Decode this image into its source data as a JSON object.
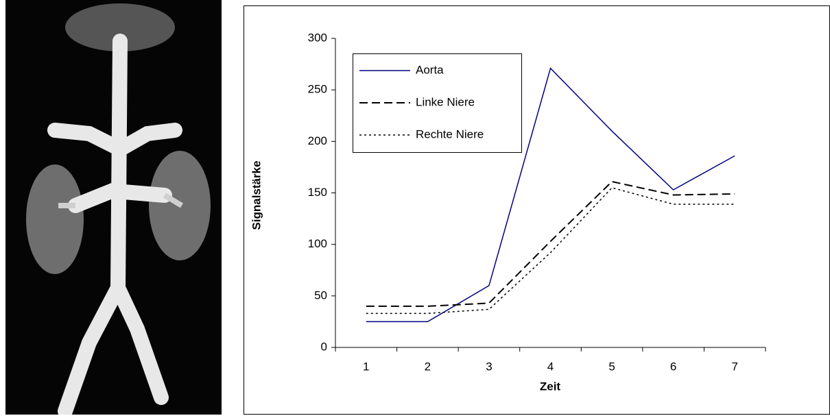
{
  "chart_data": {
    "type": "line",
    "x_label": "Zeit",
    "y_label": "Signalstärke",
    "categories": [
      "1",
      "2",
      "3",
      "4",
      "5",
      "6",
      "7"
    ],
    "series": [
      {
        "name": "Aorta",
        "color": "#000080",
        "style": "solid",
        "values": [
          25,
          25,
          60,
          271,
          210,
          153,
          186
        ]
      },
      {
        "name": "Linke Niere",
        "color": "#000000",
        "style": "dashed",
        "values": [
          40,
          40,
          43,
          103,
          161,
          148,
          149
        ]
      },
      {
        "name": "Rechte Niere",
        "color": "#000000",
        "style": "dotted",
        "values": [
          33,
          33,
          37,
          92,
          155,
          139,
          139
        ]
      }
    ],
    "ylim": [
      0,
      300
    ],
    "yticks": [
      0,
      50,
      100,
      150,
      200,
      250,
      300
    ],
    "legend": "top-left"
  }
}
